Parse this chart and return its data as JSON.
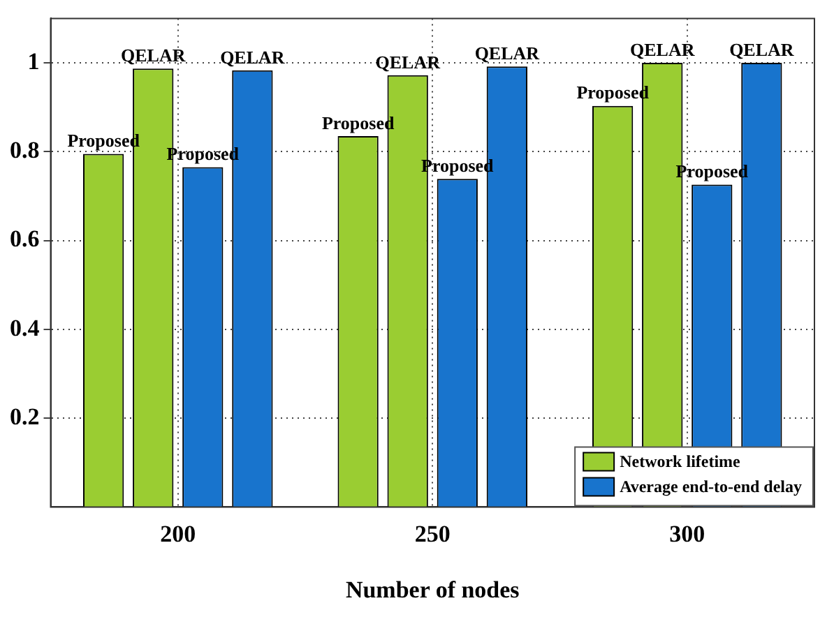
{
  "chart_data": {
    "type": "bar",
    "xlabel": "Number of nodes",
    "categories": [
      "200",
      "250",
      "300"
    ],
    "series": [
      {
        "name": "Network lifetime",
        "color": "#9acd32",
        "values": [
          0.795,
          0.835,
          0.903
        ],
        "value_labels": [
          "Proposed",
          "Proposed",
          "Proposed"
        ]
      },
      {
        "color": "#9acd32",
        "values": [
          0.987,
          0.972,
          1.0
        ],
        "value_labels": [
          "QELAR",
          "QELAR",
          "QELAR"
        ]
      },
      {
        "name": "Average end-to-end delay",
        "color": "#1874cd",
        "values": [
          0.765,
          0.739,
          0.726
        ],
        "value_labels": [
          "Proposed",
          "Proposed",
          "Proposed"
        ]
      },
      {
        "color": "#1874cd",
        "values": [
          0.983,
          0.992,
          1.0
        ],
        "value_labels": [
          "QELAR",
          "QELAR",
          "QELAR"
        ]
      }
    ],
    "ylim": [
      0,
      1.1
    ],
    "yticks": [
      0.2,
      0.4,
      0.6,
      0.8,
      1
    ],
    "grid": true,
    "legend": "bottom right"
  }
}
